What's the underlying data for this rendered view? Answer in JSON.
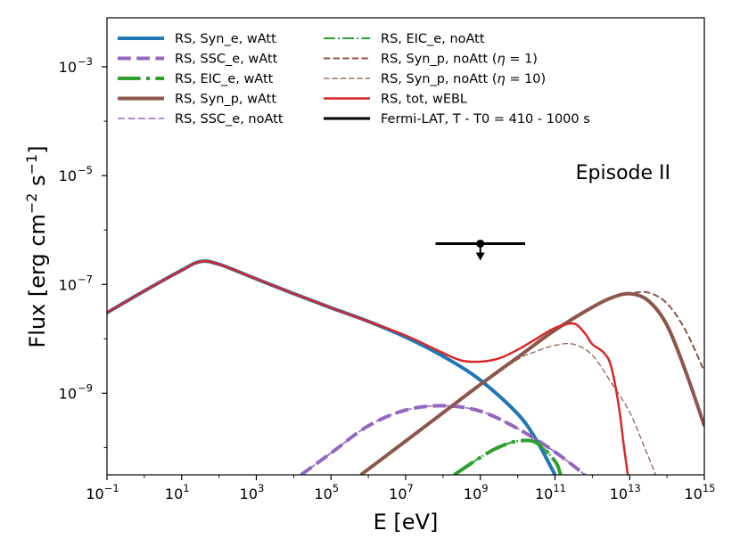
{
  "chart_data": {
    "type": "line",
    "xlabel": "E [eV]",
    "ylabel": "Flux [erg cm^-2 s^-1]",
    "xscale": "log",
    "yscale": "log",
    "xlim_log10": [
      -1,
      15
    ],
    "ylim_log10": [
      -10.5,
      -2.1
    ],
    "annotation": "Episode II",
    "x_ticks": [
      {
        "base": "10",
        "exp": "−1"
      },
      {
        "base": "10",
        "exp": "1"
      },
      {
        "base": "10",
        "exp": "3"
      },
      {
        "base": "10",
        "exp": "5"
      },
      {
        "base": "10",
        "exp": "7"
      },
      {
        "base": "10",
        "exp": "9"
      },
      {
        "base": "10",
        "exp": "11"
      },
      {
        "base": "10",
        "exp": "13"
      },
      {
        "base": "10",
        "exp": "15"
      }
    ],
    "x_tick_values_log10": [
      -1,
      1,
      3,
      5,
      7,
      9,
      11,
      13,
      15
    ],
    "y_ticks": [
      {
        "base": "10",
        "exp": "−9"
      },
      {
        "base": "10",
        "exp": "−7"
      },
      {
        "base": "10",
        "exp": "−5"
      },
      {
        "base": "10",
        "exp": "−3"
      }
    ],
    "y_tick_values_log10": [
      -9,
      -7,
      -5,
      -3
    ],
    "series": [
      {
        "name": "RS, Syn_e, wAtt",
        "color": "#1f77b4",
        "style": "solid",
        "width": 4,
        "points_log10": [
          [
            -1,
            -7.52
          ],
          [
            0,
            -7.12
          ],
          [
            1,
            -6.74
          ],
          [
            1.5,
            -6.58
          ],
          [
            2,
            -6.63
          ],
          [
            3,
            -6.9
          ],
          [
            4,
            -7.17
          ],
          [
            5,
            -7.43
          ],
          [
            6,
            -7.68
          ],
          [
            7,
            -7.97
          ],
          [
            8,
            -8.32
          ],
          [
            9,
            -8.76
          ],
          [
            10,
            -9.38
          ],
          [
            10.5,
            -9.86
          ],
          [
            11,
            -10.5
          ]
        ]
      },
      {
        "name": "RS, SSC_e, wAtt",
        "color": "#9467bd",
        "style": "dashed",
        "width": 4,
        "points_log10": [
          [
            4.2,
            -10.5
          ],
          [
            5,
            -10.1
          ],
          [
            6,
            -9.6
          ],
          [
            7,
            -9.31
          ],
          [
            8,
            -9.23
          ],
          [
            9,
            -9.33
          ],
          [
            10,
            -9.65
          ],
          [
            11,
            -10.08
          ],
          [
            11.8,
            -10.5
          ]
        ]
      },
      {
        "name": "RS, EIC_e, wAtt",
        "color": "#2ca02c",
        "style": "dashdot",
        "width": 4,
        "points_log10": [
          [
            8.3,
            -10.5
          ],
          [
            9,
            -10.18
          ],
          [
            9.5,
            -9.99
          ],
          [
            10,
            -9.88
          ],
          [
            10.5,
            -9.91
          ],
          [
            11,
            -10.25
          ],
          [
            11.15,
            -10.5
          ]
        ]
      },
      {
        "name": "RS, Syn_p, wAtt",
        "color": "#8c564b",
        "style": "solid",
        "width": 4,
        "points_log10": [
          [
            5.8,
            -10.5
          ],
          [
            7,
            -9.88
          ],
          [
            8,
            -9.36
          ],
          [
            9,
            -8.84
          ],
          [
            10,
            -8.34
          ],
          [
            11,
            -7.84
          ],
          [
            12,
            -7.42
          ],
          [
            12.5,
            -7.25
          ],
          [
            13,
            -7.17
          ],
          [
            13.5,
            -7.3
          ],
          [
            14,
            -7.75
          ],
          [
            14.5,
            -8.6
          ],
          [
            15,
            -9.6
          ]
        ]
      },
      {
        "name": "RS, SSC_e, noAtt",
        "color": "#9467bd",
        "style": "dashed-thin",
        "width": 1.6,
        "points_log10": [
          [
            4.2,
            -10.5
          ],
          [
            5,
            -10.1
          ],
          [
            6,
            -9.6
          ],
          [
            7,
            -9.31
          ],
          [
            8,
            -9.23
          ],
          [
            9,
            -9.33
          ],
          [
            10,
            -9.65
          ],
          [
            11,
            -10.08
          ],
          [
            11.8,
            -10.5
          ]
        ]
      },
      {
        "name": "RS, EIC_e, noAtt",
        "color": "#2ca02c",
        "style": "dashdot",
        "width": 2,
        "points_log10": [
          [
            8.3,
            -10.5
          ],
          [
            9,
            -10.18
          ],
          [
            9.5,
            -9.99
          ],
          [
            10,
            -9.88
          ],
          [
            10.5,
            -9.91
          ],
          [
            11,
            -10.25
          ],
          [
            11.15,
            -10.5
          ]
        ]
      },
      {
        "name": "RS, Syn_p, noAtt (η = 1)",
        "name_prefix": "RS, Syn_p, noAtt (",
        "name_suffix": "1)",
        "color": "#8c564b",
        "style": "dashed",
        "width": 2,
        "points_log10": [
          [
            5.8,
            -10.5
          ],
          [
            7,
            -9.88
          ],
          [
            8,
            -9.36
          ],
          [
            9,
            -8.84
          ],
          [
            10,
            -8.34
          ],
          [
            11,
            -7.84
          ],
          [
            12,
            -7.42
          ],
          [
            12.5,
            -7.25
          ],
          [
            13,
            -7.17
          ],
          [
            13.5,
            -7.15
          ],
          [
            14,
            -7.35
          ],
          [
            14.5,
            -7.85
          ],
          [
            15,
            -8.6
          ]
        ]
      },
      {
        "name": "RS, Syn_p, noAtt (η = 10)",
        "name_prefix": "RS, Syn_p, noAtt (",
        "name_suffix": "10)",
        "color": "#8c564b",
        "style": "dashed-thin",
        "width": 1.2,
        "points_log10": [
          [
            5.8,
            -10.5
          ],
          [
            7,
            -9.88
          ],
          [
            8,
            -9.36
          ],
          [
            9,
            -8.86
          ],
          [
            10,
            -8.38
          ],
          [
            10.5,
            -8.23
          ],
          [
            11,
            -8.12
          ],
          [
            11.5,
            -8.1
          ],
          [
            12,
            -8.3
          ],
          [
            12.5,
            -8.8
          ],
          [
            13,
            -9.35
          ],
          [
            13.4,
            -10.0
          ],
          [
            13.7,
            -10.5
          ]
        ]
      },
      {
        "name": "RS, tot, wEBL",
        "color": "#d62728",
        "style": "solid",
        "width": 2.5,
        "points_log10": [
          [
            -1,
            -7.52
          ],
          [
            0,
            -7.12
          ],
          [
            1,
            -6.74
          ],
          [
            1.5,
            -6.58
          ],
          [
            2,
            -6.63
          ],
          [
            3,
            -6.9
          ],
          [
            4,
            -7.17
          ],
          [
            5,
            -7.43
          ],
          [
            6,
            -7.68
          ],
          [
            7,
            -7.94
          ],
          [
            8,
            -8.26
          ],
          [
            8.5,
            -8.4
          ],
          [
            9,
            -8.42
          ],
          [
            9.5,
            -8.36
          ],
          [
            10,
            -8.2
          ],
          [
            10.5,
            -8.0
          ],
          [
            11,
            -7.8
          ],
          [
            11.5,
            -7.72
          ],
          [
            11.8,
            -7.9
          ],
          [
            12,
            -8.1
          ],
          [
            12.3,
            -8.25
          ],
          [
            12.5,
            -8.5
          ],
          [
            12.7,
            -9.2
          ],
          [
            12.85,
            -10.0
          ],
          [
            12.95,
            -10.5
          ]
        ]
      }
    ],
    "fermi_lat": {
      "name": "Fermi-LAT, T - T0 = 410 - 1000 s",
      "color": "#000000",
      "x_range_log10": [
        7.8,
        10.2
      ],
      "y_log10": -6.25,
      "upper_limit": true
    }
  }
}
